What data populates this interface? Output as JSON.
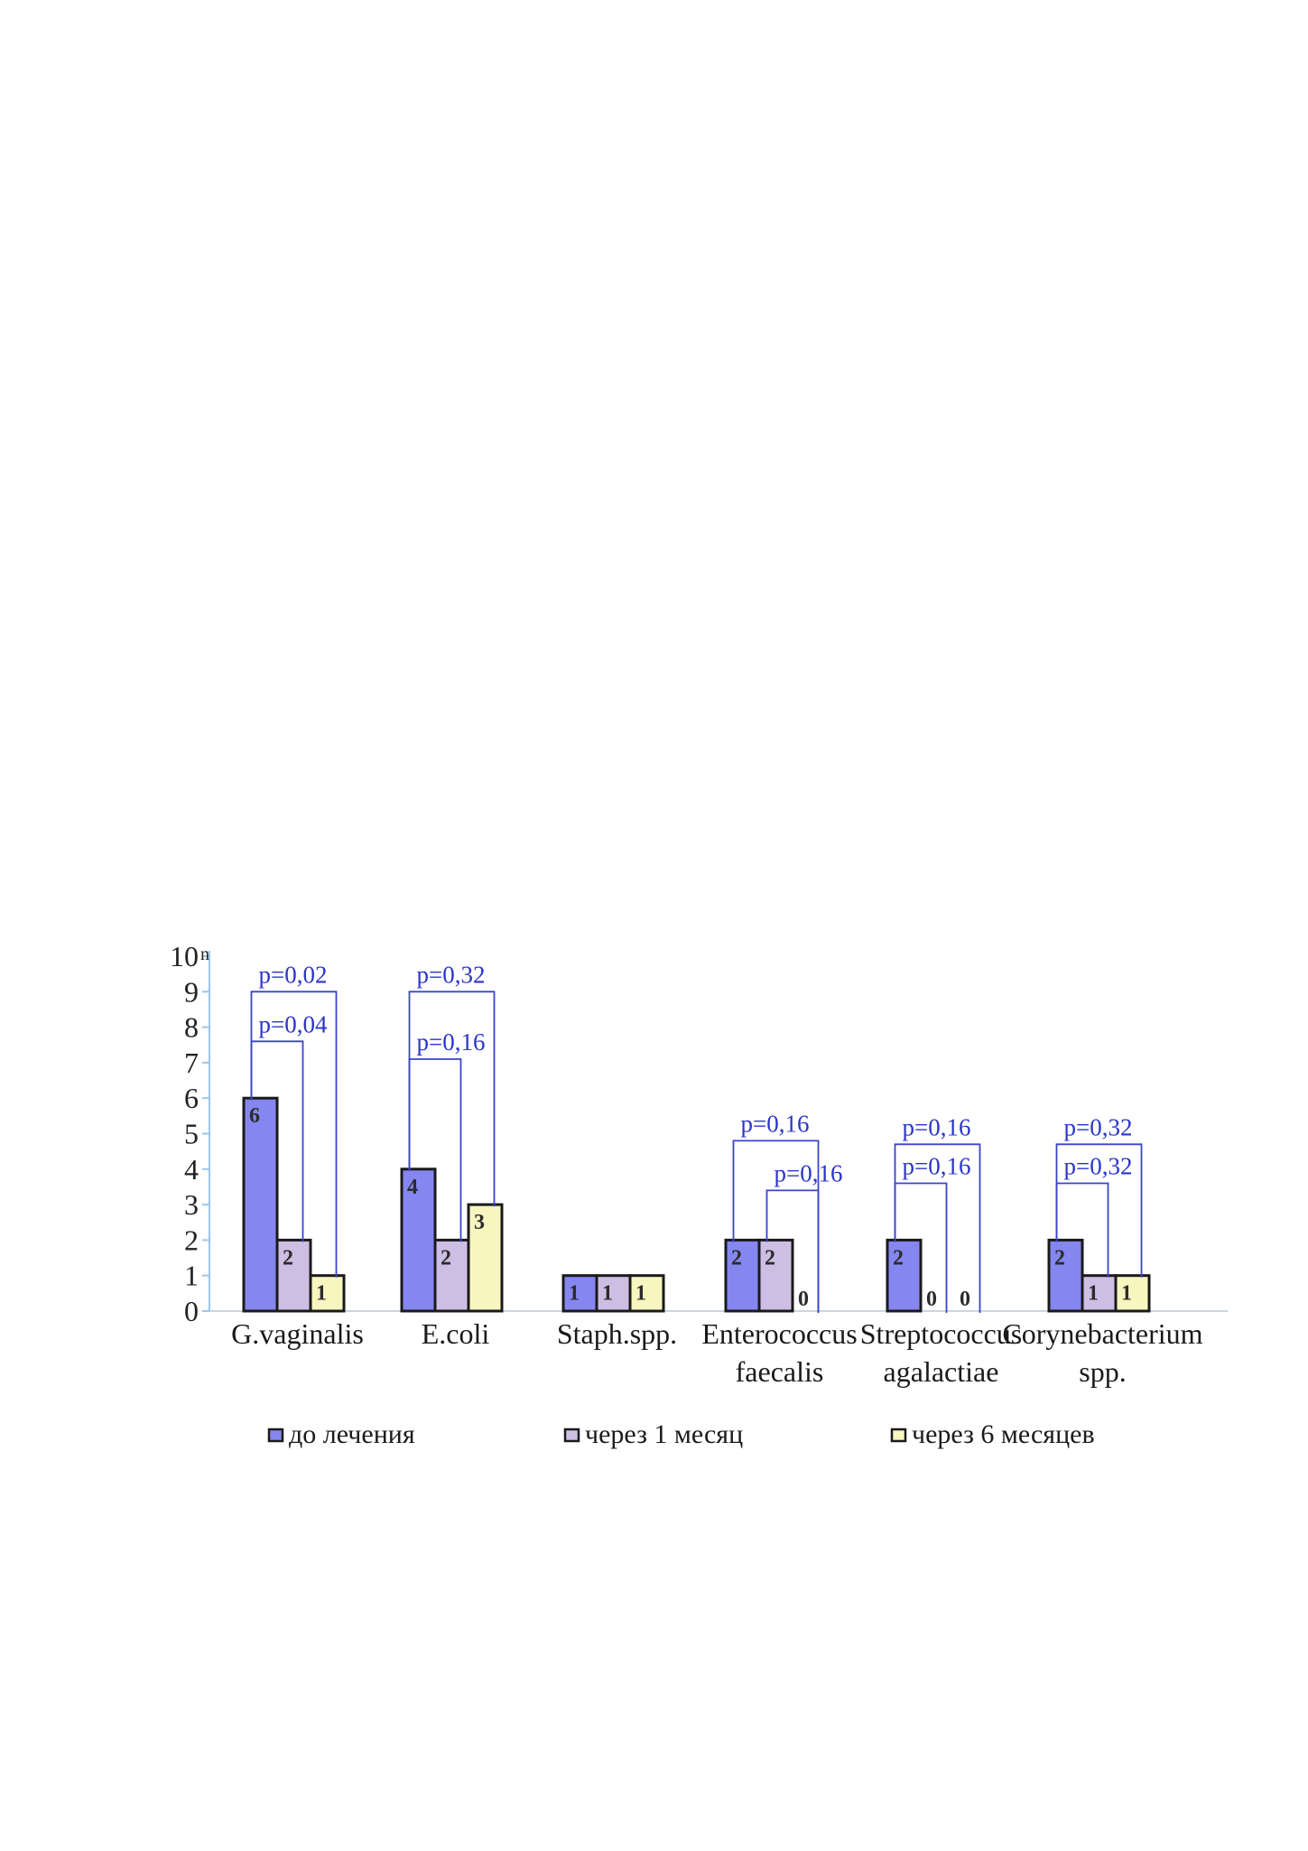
{
  "chart_data": {
    "type": "bar",
    "ylabel": "n",
    "ylim": [
      0,
      10
    ],
    "yticks": [
      "0",
      "1",
      "2",
      "3",
      "4",
      "5",
      "6",
      "7",
      "8",
      "9",
      "10"
    ],
    "categories": [
      [
        "G.vaginalis"
      ],
      [
        "E.coli"
      ],
      [
        "Staph.spp."
      ],
      [
        "Enterococcus",
        "faecalis"
      ],
      [
        "Streptococcus",
        "agalactiae"
      ],
      [
        "Corynebacterium",
        "spp."
      ]
    ],
    "series": [
      {
        "name": "до лечения",
        "color": "#8686f0",
        "values": [
          6,
          4,
          1,
          2,
          2,
          2
        ]
      },
      {
        "name": "через 1 месяц",
        "color": "#cdbfe4",
        "values": [
          2,
          2,
          1,
          2,
          0,
          1
        ]
      },
      {
        "name": "через 6 месяцев",
        "color": "#f8f6bf",
        "values": [
          1,
          3,
          1,
          0,
          0,
          1
        ]
      }
    ],
    "annotations": [
      {
        "category": 0,
        "from": 0,
        "to": 2,
        "level": 9,
        "label": "p=0,02"
      },
      {
        "category": 0,
        "from": 0,
        "to": 1,
        "level": 7.6,
        "label": "p=0,04"
      },
      {
        "category": 1,
        "from": 0,
        "to": 2,
        "level": 9,
        "label": "p=0,32"
      },
      {
        "category": 1,
        "from": 0,
        "to": 1,
        "level": 7.1,
        "label": "p=0,16"
      },
      {
        "category": 3,
        "from": 0,
        "to": 2,
        "level": 4.8,
        "label": "p=0,16"
      },
      {
        "category": 3,
        "from": 1,
        "to": 2,
        "level": 3.4,
        "label": "p=0,16"
      },
      {
        "category": 4,
        "from": 0,
        "to": 2,
        "level": 4.7,
        "label": "p=0,16"
      },
      {
        "category": 4,
        "from": 0,
        "to": 1,
        "level": 3.6,
        "label": "p=0,16"
      },
      {
        "category": 5,
        "from": 0,
        "to": 2,
        "level": 4.7,
        "label": "p=0,32"
      },
      {
        "category": 5,
        "from": 0,
        "to": 1,
        "level": 3.6,
        "label": "p=0,32"
      }
    ],
    "legend_position": "bottom",
    "grid": false
  }
}
